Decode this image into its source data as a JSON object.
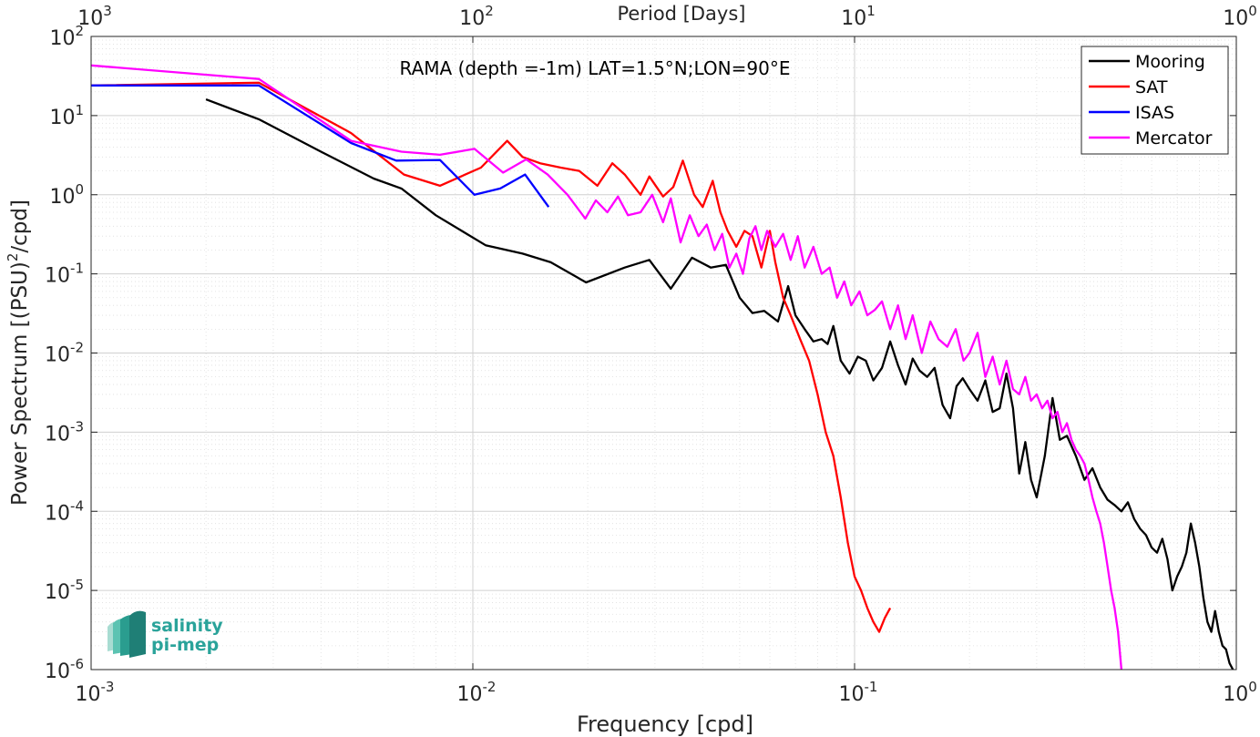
{
  "chart_data": {
    "type": "line",
    "title": "RAMA (depth =-1m) LAT=1.5°N;LON=90°E",
    "xlabel": "Frequency [cpd]",
    "ylabel_main": "Power Spectrum [(PSU)",
    "ylabel_sup": "2",
    "ylabel_tail": "/cpd]",
    "top_xlabel": "Period [Days]",
    "x_scale": "log",
    "y_scale": "log",
    "xlim": [
      0.001,
      1
    ],
    "ylim": [
      1e-06,
      100
    ],
    "grid": true,
    "minor_grid": true,
    "legend_position": "top-right",
    "x_ticks": [
      {
        "value": 0.001,
        "base": "10",
        "exp": "-3"
      },
      {
        "value": 0.01,
        "base": "10",
        "exp": "-2"
      },
      {
        "value": 0.1,
        "base": "10",
        "exp": "-1"
      },
      {
        "value": 1,
        "base": "10",
        "exp": "0"
      }
    ],
    "top_ticks": [
      {
        "value": 0.001,
        "base": "10",
        "exp": "3"
      },
      {
        "value": 0.01,
        "base": "10",
        "exp": "2"
      },
      {
        "value": 0.1,
        "base": "10",
        "exp": "1"
      },
      {
        "value": 1,
        "base": "10",
        "exp": "0"
      }
    ],
    "y_ticks": [
      {
        "value": 100,
        "base": "10",
        "exp": "2"
      },
      {
        "value": 10,
        "base": "10",
        "exp": "1"
      },
      {
        "value": 1,
        "base": "10",
        "exp": "0"
      },
      {
        "value": 0.1,
        "base": "10",
        "exp": "-1"
      },
      {
        "value": 0.01,
        "base": "10",
        "exp": "-2"
      },
      {
        "value": 0.001,
        "base": "10",
        "exp": "-3"
      },
      {
        "value": 0.0001,
        "base": "10",
        "exp": "-4"
      },
      {
        "value": 1e-05,
        "base": "10",
        "exp": "-5"
      },
      {
        "value": 1e-06,
        "base": "10",
        "exp": "-6"
      }
    ],
    "series": [
      {
        "name": "Mooring",
        "color": "#000000",
        "x": [
          0.002,
          0.00275,
          0.004,
          0.0055,
          0.0065,
          0.008,
          0.0108,
          0.0135,
          0.016,
          0.0198,
          0.025,
          0.029,
          0.033,
          0.0375,
          0.042,
          0.046,
          0.05,
          0.054,
          0.058,
          0.063,
          0.067,
          0.07,
          0.074,
          0.078,
          0.082,
          0.085,
          0.088,
          0.092,
          0.097,
          0.102,
          0.107,
          0.112,
          0.118,
          0.124,
          0.13,
          0.136,
          0.142,
          0.148,
          0.155,
          0.162,
          0.17,
          0.178,
          0.185,
          0.192,
          0.2,
          0.21,
          0.22,
          0.23,
          0.24,
          0.25,
          0.26,
          0.27,
          0.28,
          0.29,
          0.3,
          0.315,
          0.33,
          0.345,
          0.36,
          0.38,
          0.4,
          0.42,
          0.44,
          0.46,
          0.48,
          0.5,
          0.52,
          0.54,
          0.56,
          0.58,
          0.6,
          0.62,
          0.64,
          0.66,
          0.68,
          0.7,
          0.72,
          0.74,
          0.76,
          0.78,
          0.8,
          0.82,
          0.84,
          0.86,
          0.88,
          0.9,
          0.92,
          0.94,
          0.96,
          0.98
        ],
        "y": [
          16,
          9,
          3.5,
          1.6,
          1.2,
          0.55,
          0.23,
          0.18,
          0.14,
          0.078,
          0.12,
          0.15,
          0.065,
          0.16,
          0.12,
          0.13,
          0.05,
          0.032,
          0.034,
          0.025,
          0.07,
          0.03,
          0.02,
          0.014,
          0.015,
          0.013,
          0.022,
          0.008,
          0.0055,
          0.009,
          0.008,
          0.0045,
          0.0065,
          0.014,
          0.007,
          0.004,
          0.0085,
          0.006,
          0.005,
          0.0065,
          0.0022,
          0.0015,
          0.0038,
          0.0048,
          0.0035,
          0.0025,
          0.0045,
          0.0018,
          0.002,
          0.0055,
          0.002,
          0.0003,
          0.00075,
          0.00025,
          0.00015,
          0.0005,
          0.0027,
          0.0008,
          0.0009,
          0.0005,
          0.00025,
          0.00035,
          0.0002,
          0.00014,
          0.00012,
          0.0001,
          0.00013,
          8e-05,
          6e-05,
          5e-05,
          3.5e-05,
          3e-05,
          4.5e-05,
          2.5e-05,
          1e-05,
          1.5e-05,
          2e-05,
          3e-05,
          7e-05,
          4e-05,
          2e-05,
          8e-06,
          4e-06,
          3e-06,
          5.5e-06,
          3e-06,
          2e-06,
          1.8e-06,
          1.2e-06,
          1e-06
        ]
      },
      {
        "name": "SAT",
        "color": "#ff0000",
        "x": [
          0.001,
          0.00275,
          0.0048,
          0.0066,
          0.0082,
          0.0105,
          0.0123,
          0.0135,
          0.015,
          0.017,
          0.019,
          0.0212,
          0.0232,
          0.025,
          0.0275,
          0.029,
          0.0315,
          0.0335,
          0.0355,
          0.038,
          0.04,
          0.0425,
          0.0445,
          0.0465,
          0.049,
          0.0515,
          0.054,
          0.057,
          0.06,
          0.062,
          0.065,
          0.068,
          0.072,
          0.076,
          0.08,
          0.084,
          0.088,
          0.092,
          0.096,
          0.1,
          0.104,
          0.108,
          0.112,
          0.116,
          0.12,
          0.124
        ],
        "y": [
          24,
          26,
          6,
          1.8,
          1.3,
          2.2,
          4.8,
          3.0,
          2.5,
          2.2,
          2.0,
          1.3,
          2.5,
          1.8,
          1.0,
          1.7,
          0.95,
          1.25,
          2.7,
          1.0,
          0.7,
          1.5,
          0.6,
          0.35,
          0.22,
          0.35,
          0.3,
          0.12,
          0.35,
          0.14,
          0.05,
          0.03,
          0.015,
          0.008,
          0.003,
          0.001,
          0.0005,
          0.00015,
          4e-05,
          1.5e-05,
          1e-05,
          6e-06,
          4e-06,
          3e-06,
          4.5e-06,
          6e-06
        ]
      },
      {
        "name": "ISAS",
        "color": "#0000ff",
        "x": [
          0.001,
          0.00275,
          0.0048,
          0.0063,
          0.0082,
          0.0101,
          0.0118,
          0.0137,
          0.0158
        ],
        "y": [
          24,
          24,
          4.5,
          2.7,
          2.75,
          1.0,
          1.2,
          1.8,
          0.7
        ]
      },
      {
        "name": "Mercator",
        "color": "#ff00ff",
        "x": [
          0.001,
          0.00275,
          0.0048,
          0.0065,
          0.0082,
          0.0101,
          0.012,
          0.0138,
          0.0157,
          0.0177,
          0.0197,
          0.021,
          0.0225,
          0.024,
          0.0255,
          0.0275,
          0.0295,
          0.0315,
          0.033,
          0.035,
          0.037,
          0.039,
          0.041,
          0.043,
          0.045,
          0.047,
          0.049,
          0.051,
          0.053,
          0.055,
          0.057,
          0.059,
          0.062,
          0.065,
          0.068,
          0.071,
          0.074,
          0.078,
          0.082,
          0.086,
          0.09,
          0.094,
          0.098,
          0.103,
          0.108,
          0.113,
          0.118,
          0.124,
          0.13,
          0.136,
          0.142,
          0.15,
          0.158,
          0.166,
          0.175,
          0.184,
          0.193,
          0.2,
          0.21,
          0.22,
          0.23,
          0.24,
          0.25,
          0.26,
          0.27,
          0.28,
          0.29,
          0.3,
          0.31,
          0.32,
          0.33,
          0.34,
          0.35,
          0.36,
          0.37,
          0.38,
          0.39,
          0.4,
          0.41,
          0.42,
          0.43,
          0.44,
          0.45,
          0.46,
          0.47,
          0.48,
          0.49,
          0.5
        ],
        "y": [
          43,
          29,
          4.8,
          3.5,
          3.2,
          3.8,
          1.9,
          2.8,
          1.8,
          1.0,
          0.5,
          0.85,
          0.6,
          0.95,
          0.55,
          0.6,
          1.0,
          0.45,
          0.9,
          0.25,
          0.55,
          0.3,
          0.42,
          0.2,
          0.32,
          0.12,
          0.18,
          0.1,
          0.28,
          0.4,
          0.2,
          0.35,
          0.22,
          0.32,
          0.15,
          0.3,
          0.12,
          0.22,
          0.1,
          0.12,
          0.05,
          0.08,
          0.04,
          0.06,
          0.03,
          0.035,
          0.045,
          0.02,
          0.04,
          0.015,
          0.03,
          0.01,
          0.025,
          0.015,
          0.012,
          0.02,
          0.008,
          0.01,
          0.018,
          0.005,
          0.009,
          0.004,
          0.008,
          0.0035,
          0.003,
          0.005,
          0.0025,
          0.003,
          0.002,
          0.0025,
          0.0015,
          0.0018,
          0.001,
          0.0013,
          0.0008,
          0.0006,
          0.0005,
          0.0004,
          0.00025,
          0.00015,
          0.0001,
          7e-05,
          4e-05,
          2e-05,
          1e-05,
          6e-06,
          3e-06,
          1e-06
        ]
      }
    ]
  },
  "logo": {
    "line1": "salinity",
    "line2": "pi-mep"
  }
}
